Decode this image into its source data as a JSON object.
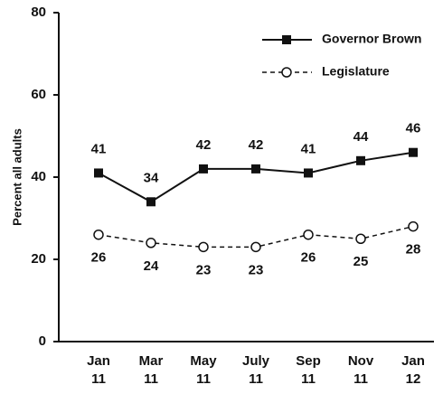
{
  "chart_data": {
    "type": "line",
    "y_label": "Percent all adults",
    "categories": [
      "Jan\n11",
      "Mar\n11",
      "May\n11",
      "July\n11",
      "Sep\n11",
      "Nov\n11",
      "Jan\n12"
    ],
    "series": [
      {
        "name": "Governor Brown",
        "color": "#111111",
        "marker": "square",
        "dash": false,
        "values": [
          41,
          34,
          42,
          42,
          41,
          44,
          46
        ]
      },
      {
        "name": "Legislature",
        "color": "#111111",
        "marker": "circle",
        "dash": true,
        "values": [
          26,
          24,
          23,
          23,
          26,
          25,
          28
        ]
      }
    ],
    "ylim": [
      0,
      80
    ],
    "yticks": [
      0,
      20,
      40,
      60,
      80
    ],
    "grid": false,
    "legend": "upper right"
  }
}
